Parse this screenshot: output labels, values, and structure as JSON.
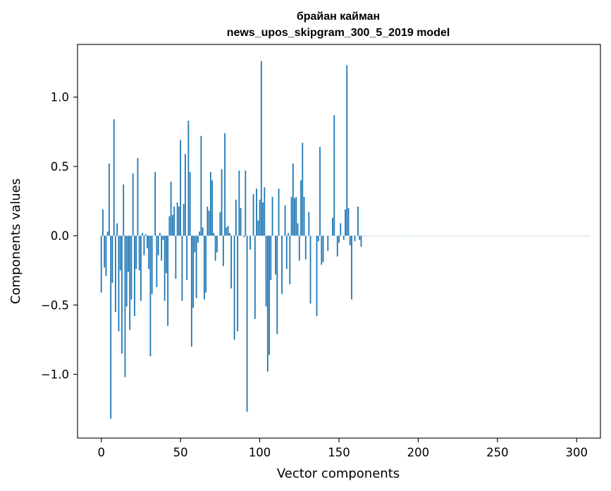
{
  "chart_data": {
    "type": "bar",
    "title": "брайан кайман",
    "subtitle": "news_upos_skipgram_300_5_2019 model",
    "xlabel": "Vector components",
    "ylabel": "Components values",
    "xlim": [
      -15,
      315
    ],
    "ylim": [
      -1.46,
      1.38
    ],
    "xticks": [
      0,
      50,
      100,
      150,
      200,
      250,
      300
    ],
    "yticks": [
      -1.0,
      -0.5,
      0.0,
      0.5,
      1.0
    ],
    "ytick_labels": [
      "−1.0",
      "−0.5",
      "0.0",
      "0.5",
      "1.0"
    ],
    "bar_color": "#1f77b4",
    "grid": false,
    "values": [
      -0.41,
      0.19,
      -0.23,
      -0.29,
      0.03,
      0.52,
      -1.32,
      -0.34,
      0.84,
      -0.55,
      0.09,
      -0.69,
      -0.25,
      -0.85,
      0.37,
      -1.02,
      -0.51,
      -0.26,
      -0.68,
      -0.46,
      0.45,
      -0.58,
      -0.24,
      0.56,
      -0.25,
      -0.47,
      0.02,
      -0.14,
      0.01,
      -0.09,
      -0.24,
      -0.87,
      -0.42,
      0.0,
      0.46,
      -0.37,
      -0.14,
      0.02,
      -0.18,
      -0.03,
      -0.47,
      -0.27,
      -0.65,
      0.14,
      0.39,
      0.15,
      0.21,
      -0.31,
      0.24,
      0.21,
      0.69,
      -0.47,
      0.23,
      0.59,
      -0.32,
      0.83,
      0.46,
      -0.8,
      -0.52,
      -0.12,
      -0.45,
      -0.05,
      0.03,
      0.72,
      0.06,
      -0.46,
      -0.41,
      0.21,
      0.18,
      0.46,
      0.4,
      0.02,
      -0.18,
      -0.12,
      0.0,
      0.17,
      0.48,
      -0.22,
      0.74,
      0.06,
      0.07,
      0.02,
      -0.38,
      0.0,
      -0.75,
      0.26,
      -0.69,
      0.47,
      0.2,
      0.0,
      -0.01,
      0.47,
      -1.27,
      0.0,
      -0.1,
      0.0,
      0.3,
      -0.6,
      0.34,
      0.11,
      0.26,
      1.26,
      0.24,
      0.35,
      -0.51,
      -0.98,
      -0.86,
      -0.32,
      0.28,
      0.0,
      -0.28,
      -0.71,
      0.34,
      0.0,
      -0.42,
      0.0,
      0.22,
      -0.24,
      0.02,
      -0.35,
      0.28,
      0.52,
      0.27,
      0.28,
      0.09,
      -0.18,
      0.4,
      0.67,
      0.28,
      -0.17,
      0.0,
      0.17,
      -0.49,
      0.0,
      0.0,
      0.0,
      -0.58,
      -0.04,
      0.64,
      -0.21,
      -0.19,
      0.0,
      0.0,
      -0.11,
      0.0,
      0.0,
      0.13,
      0.87,
      0.0,
      -0.15,
      -0.05,
      0.09,
      0.0,
      -0.03,
      0.19,
      1.23,
      0.2,
      -0.07,
      -0.46,
      0.0,
      -0.04,
      0.0,
      0.21,
      -0.03,
      -0.08,
      0.0,
      0.0,
      0.0,
      0.0,
      0.0,
      0.0,
      0.0,
      0.0,
      0.0,
      0.0,
      0.0,
      0.0,
      0.0,
      0.0,
      0.0,
      0.0,
      0.0,
      0.0,
      0.0,
      0.0,
      0.0,
      0.0,
      0.0,
      0.0,
      0.0,
      0.0,
      0.0,
      0.0,
      0.0,
      0.0,
      0.0,
      0.0,
      0.0,
      0.0,
      0.0,
      0.0,
      0.0,
      0.0,
      0.0,
      0.0,
      0.0,
      0.0,
      0.0,
      0.0,
      0.0,
      0.0,
      0.0,
      0.0,
      0.0,
      0.0,
      0.0,
      0.0,
      0.0,
      0.0,
      0.0,
      0.0,
      0.0,
      0.0,
      0.0,
      0.0,
      0.0,
      0.0,
      0.0,
      0.0,
      0.0,
      0.0,
      0.0,
      0.0,
      0.0,
      0.0,
      0.0,
      0.0,
      0.0,
      0.0,
      0.0,
      0.0,
      0.0,
      0.0,
      0.0,
      0.0,
      0.0,
      0.0,
      0.0,
      0.0,
      0.0,
      0.0,
      0.0,
      0.0,
      0.0,
      0.0,
      0.0,
      0.0,
      0.0,
      0.0,
      0.0,
      0.0,
      0.0,
      0.0,
      0.0,
      0.0,
      0.0,
      0.0,
      0.0,
      0.0,
      0.0,
      0.0,
      0.0,
      0.0,
      0.0,
      0.0,
      0.0,
      0.0,
      0.0,
      0.0,
      0.0,
      0.0,
      0.0,
      0.0,
      0.0,
      0.0,
      0.0,
      0.0,
      0.0,
      0.0,
      0.0,
      0.0,
      0.0,
      0.0,
      0.0,
      0.0,
      0.0,
      0.0,
      0.0,
      0.0,
      0.0,
      0.0,
      0.0,
      0.0,
      0.0,
      0.0,
      0.0,
      0.0,
      0.0,
      0.0
    ]
  }
}
